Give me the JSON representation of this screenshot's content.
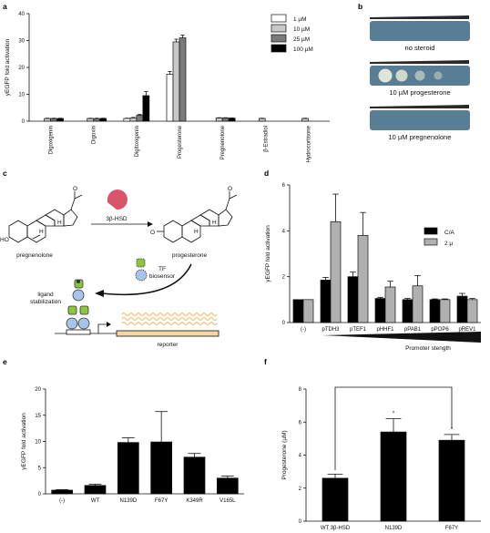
{
  "panels": {
    "a": "a",
    "b": "b",
    "c": "c",
    "d": "d",
    "e": "e",
    "f": "f"
  },
  "panel_b": {
    "plates": [
      "no steroid",
      "10 µM progesterone",
      "10 µM pregnenolone"
    ],
    "colors": {
      "agar": "#5a7d96",
      "wedge": "#2a2a2a"
    }
  },
  "panel_c": {
    "enzyme": "3β-HSD",
    "substrate": "pregnenolone",
    "product": "progesterone",
    "biosensor": "TF\nbiosensor",
    "ligand_stabilization": "ligand\nstabilization",
    "reporter": "reporter",
    "oxygen": "O",
    "hydroxyl": "HO",
    "h": "H",
    "colors": {
      "enzyme": "#d9536b",
      "sensor_green": "#8cc63f",
      "sensor_blue": "#a9c4ea",
      "reporter": "#f6d6a5",
      "wave": "#f0c27a"
    }
  },
  "chart_data": [
    {
      "panel": "a",
      "type": "bar",
      "ylabel": "yEGFP fold activation",
      "ylim": [
        0,
        40
      ],
      "yticks": [
        0,
        10,
        20,
        30,
        40
      ],
      "categories": [
        "Digoxigenin",
        "Digoxin",
        "Digitoxigenin",
        "Progesterone",
        "Pregnenolone",
        "β-Estradiol",
        "Hydrocortisone"
      ],
      "series": [
        {
          "name": "1 µM",
          "color": "#ffffff",
          "values": [
            null,
            null,
            1.0,
            17.5,
            null,
            null,
            null
          ],
          "errors": [
            0,
            0,
            0.1,
            1.0,
            0,
            0,
            0
          ]
        },
        {
          "name": "10 µM",
          "color": "#c8c8c8",
          "values": [
            1.0,
            1.0,
            1.2,
            29.5,
            1.2,
            1.0,
            1.0
          ],
          "errors": [
            0.1,
            0.1,
            0.2,
            1.0,
            0.1,
            0.1,
            0.1
          ]
        },
        {
          "name": "25 µM",
          "color": "#7a7a7a",
          "values": [
            1.0,
            1.0,
            2.2,
            31.0,
            1.2,
            null,
            null
          ],
          "errors": [
            0.1,
            0.1,
            0.3,
            1.0,
            0.1,
            0,
            0
          ]
        },
        {
          "name": "100 µM",
          "color": "#000000",
          "values": [
            1.0,
            1.0,
            9.5,
            null,
            1.1,
            null,
            null
          ],
          "errors": [
            0.1,
            0.1,
            1.5,
            0,
            0.1,
            0,
            0
          ]
        }
      ]
    },
    {
      "panel": "d",
      "type": "bar",
      "ylabel": "yEGFP fold activation",
      "ylim": [
        0,
        6
      ],
      "yticks": [
        0,
        2,
        4,
        6
      ],
      "categories": [
        "(-)",
        "pTDH3",
        "pTEF1",
        "pHHF1",
        "pPAB1",
        "pPOP6",
        "pREV1"
      ],
      "xlabel": "Promoter stength",
      "series": [
        {
          "name": "C/A",
          "color": "#000000",
          "values": [
            1.0,
            1.85,
            2.0,
            1.05,
            1.0,
            1.0,
            1.15
          ],
          "errors": [
            0,
            0.12,
            0.2,
            0.05,
            0.05,
            0.03,
            0.12
          ]
        },
        {
          "name": "2 µ",
          "color": "#b0b0b0",
          "values": [
            1.0,
            4.4,
            3.8,
            1.55,
            1.6,
            1.0,
            1.0
          ],
          "errors": [
            0,
            1.2,
            1.0,
            0.25,
            0.45,
            0.03,
            0.05
          ]
        }
      ]
    },
    {
      "panel": "e",
      "type": "bar",
      "ylabel": "yEGFP fold activation",
      "ylim": [
        0,
        20
      ],
      "yticks": [
        0,
        5,
        10,
        15,
        20
      ],
      "categories": [
        "(-)",
        "WT",
        "N139D",
        "F67Y",
        "K349R",
        "V165L"
      ],
      "values": [
        0.7,
        1.6,
        9.8,
        9.9,
        7.0,
        3.0
      ],
      "errors": [
        0.1,
        0.25,
        0.9,
        5.8,
        0.7,
        0.4
      ]
    },
    {
      "panel": "f",
      "type": "bar",
      "ylabel": "Progesterone (µM)",
      "ylim": [
        0,
        8
      ],
      "yticks": [
        0,
        2,
        4,
        6,
        8
      ],
      "categories": [
        "WT 3β-HSD",
        "N139D",
        "F67Y"
      ],
      "values": [
        2.6,
        5.4,
        4.9
      ],
      "errors": [
        0.25,
        0.8,
        0.35
      ],
      "significance": "*"
    }
  ]
}
